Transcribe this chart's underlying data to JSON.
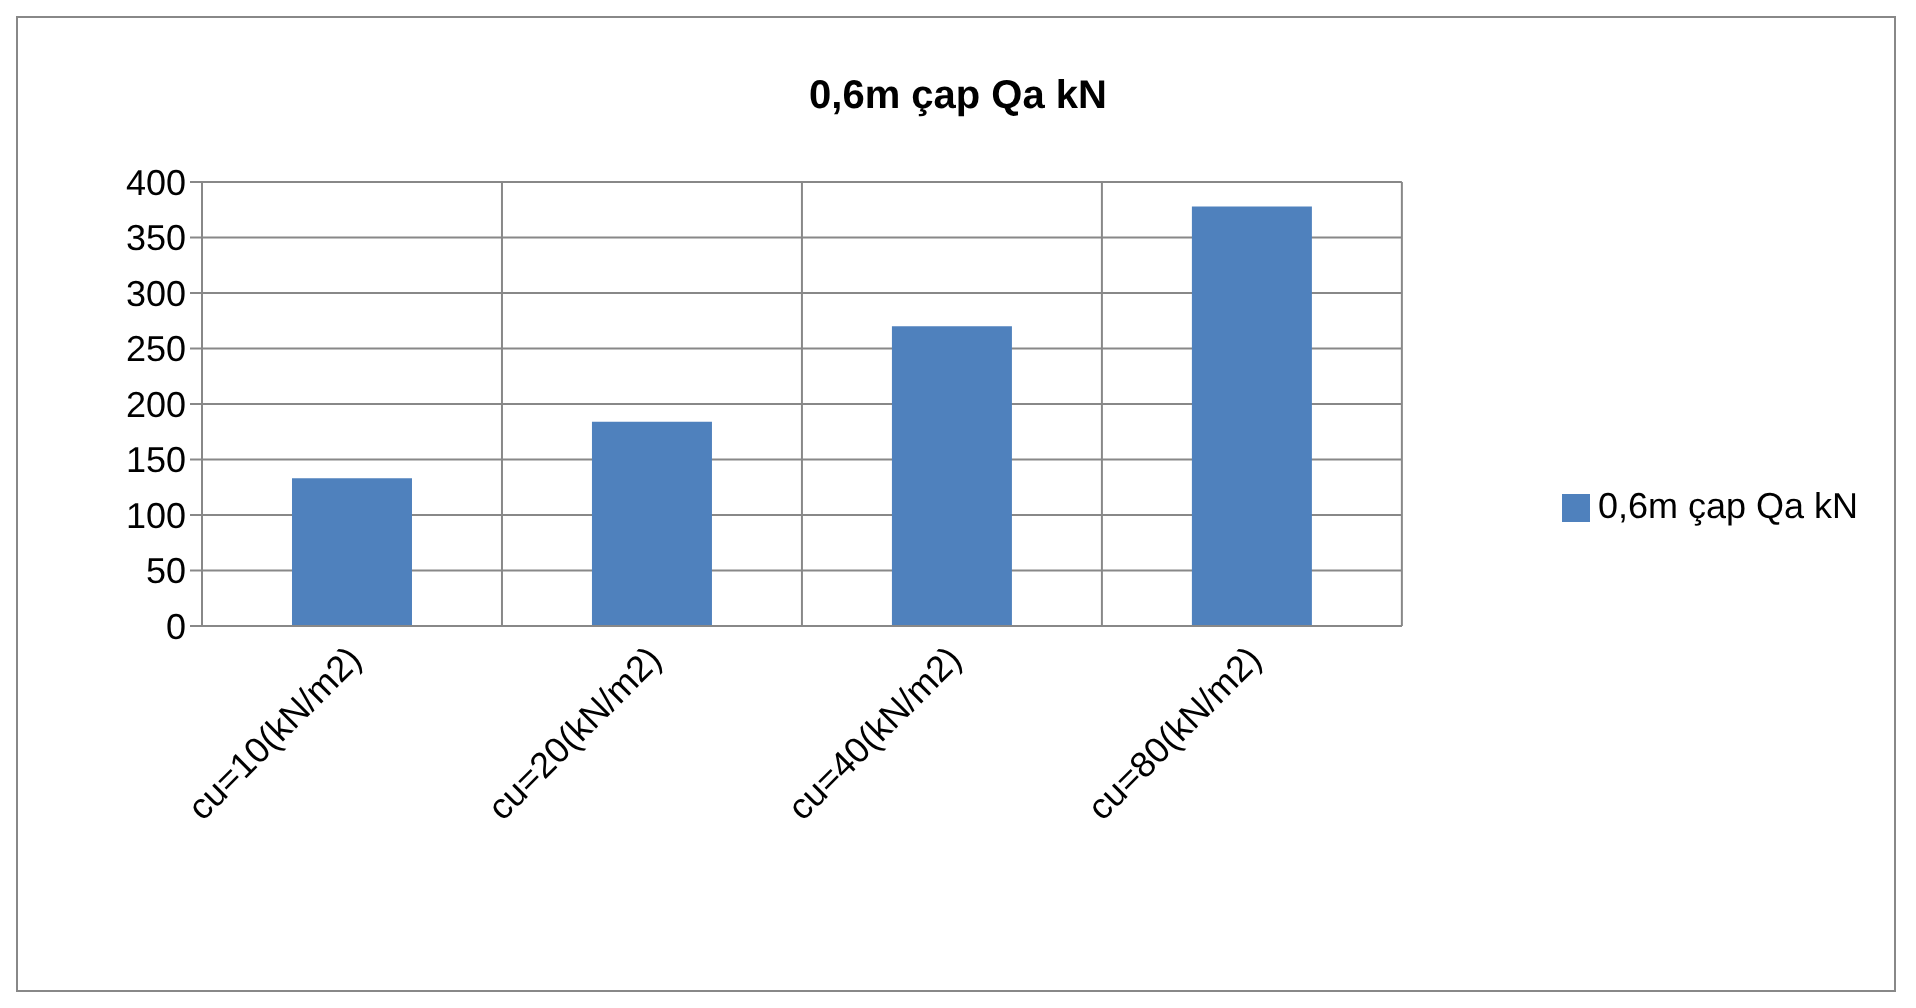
{
  "chart_data": {
    "type": "bar",
    "title": "0,6m çap Qa kN",
    "categories": [
      "cu=10(kN/m2)",
      "cu=20(kN/m2)",
      "cu=40(kN/m2)",
      "cu=80(kN/m2)"
    ],
    "series": [
      {
        "name": "0,6m çap Qa kN",
        "color": "#4f81bd",
        "values": [
          133,
          184,
          270,
          378
        ]
      }
    ],
    "ylim": [
      0,
      400
    ],
    "yticks": [
      0,
      50,
      100,
      150,
      200,
      250,
      300,
      350,
      400
    ],
    "grid": true,
    "legend": "right"
  }
}
